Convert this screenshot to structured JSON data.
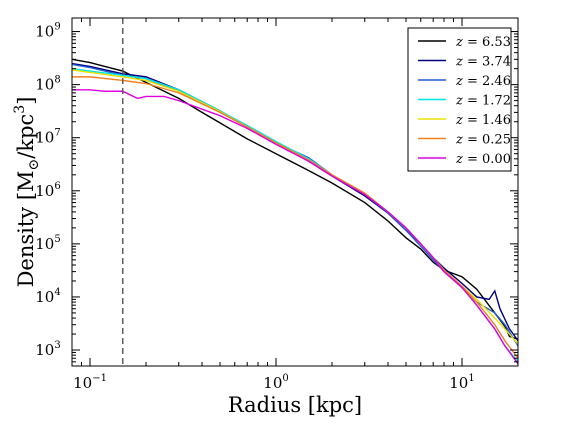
{
  "chart_data": {
    "type": "line",
    "xlabel": "Radius [kpc]",
    "ylabel_main": "Density [M",
    "ylabel_sub": "⊙",
    "ylabel_tail": "/kpc",
    "ylabel_sup": "3",
    "ylabel_end": "]",
    "x_scale": "log",
    "y_scale": "log",
    "xlim": [
      0.08,
      20
    ],
    "ylim": [
      500,
      1800000000
    ],
    "x_ticks": [
      {
        "value": 0.1,
        "base": "10",
        "exp": "−1"
      },
      {
        "value": 1,
        "base": "10",
        "exp": "0"
      },
      {
        "value": 10,
        "base": "10",
        "exp": "1"
      }
    ],
    "y_ticks": [
      {
        "value": 1000,
        "base": "10",
        "exp": "3"
      },
      {
        "value": 10000,
        "base": "10",
        "exp": "4"
      },
      {
        "value": 100000,
        "base": "10",
        "exp": "5"
      },
      {
        "value": 1000000,
        "base": "10",
        "exp": "6"
      },
      {
        "value": 10000000,
        "base": "10",
        "exp": "7"
      },
      {
        "value": 100000000,
        "base": "10",
        "exp": "8"
      },
      {
        "value": 1000000000,
        "base": "10",
        "exp": "9"
      }
    ],
    "vline": {
      "x": 0.15,
      "style": "dashed",
      "color": "#555555"
    },
    "legend_position": "top-right",
    "legend_var": "z",
    "grid": false,
    "series": [
      {
        "name": "6.53",
        "color": "#000000",
        "points": [
          [
            0.08,
            300000000.0
          ],
          [
            0.1,
            260000000.0
          ],
          [
            0.12,
            220000000.0
          ],
          [
            0.15,
            180000000.0
          ],
          [
            0.2,
            110000000.0
          ],
          [
            0.3,
            55000000.0
          ],
          [
            0.4,
            30000000.0
          ],
          [
            0.5,
            19000000.0
          ],
          [
            0.7,
            9500000.0
          ],
          [
            1.0,
            5000000.0
          ],
          [
            1.5,
            2400000.0
          ],
          [
            2.0,
            1400000.0
          ],
          [
            3.0,
            600000.0
          ],
          [
            4.0,
            270000.0
          ],
          [
            5.0,
            130000.0
          ],
          [
            6.0,
            80000.0
          ],
          [
            7.0,
            45000.0
          ],
          [
            8.0,
            32000.0
          ],
          [
            10.0,
            24000.0
          ],
          [
            12.0,
            14000.0
          ],
          [
            15.0,
            5000.0
          ],
          [
            17.0,
            2800.0
          ],
          [
            18.0,
            1800.0
          ],
          [
            20.0,
            1600.0
          ]
        ]
      },
      {
        "name": "3.74",
        "color": "#000080",
        "points": [
          [
            0.08,
            250000000.0
          ],
          [
            0.1,
            220000000.0
          ],
          [
            0.15,
            160000000.0
          ],
          [
            0.2,
            140000000.0
          ],
          [
            0.3,
            80000000.0
          ],
          [
            0.5,
            32000000.0
          ],
          [
            0.7,
            16000000.0
          ],
          [
            1.0,
            8000000.0
          ],
          [
            1.5,
            3600000.0
          ],
          [
            2.0,
            1900000.0
          ],
          [
            3.0,
            800000.0
          ],
          [
            4.0,
            380000.0
          ],
          [
            5.0,
            180000.0
          ],
          [
            6.0,
            100000.0
          ],
          [
            7.0,
            55000.0
          ],
          [
            8.0,
            35000.0
          ],
          [
            10.0,
            18000.0
          ],
          [
            12.0,
            10000.0
          ],
          [
            14.0,
            9000.0
          ],
          [
            15.0,
            13000.0
          ],
          [
            16.0,
            6000.0
          ],
          [
            18.0,
            2500.0
          ],
          [
            20.0,
            1500.0
          ]
        ]
      },
      {
        "name": "2.46",
        "color": "#1f5fd6",
        "points": [
          [
            0.08,
            240000000.0
          ],
          [
            0.1,
            210000000.0
          ],
          [
            0.15,
            150000000.0
          ],
          [
            0.2,
            130000000.0
          ],
          [
            0.3,
            75000000.0
          ],
          [
            0.5,
            30000000.0
          ],
          [
            0.7,
            16000000.0
          ],
          [
            1.0,
            8000000.0
          ],
          [
            1.5,
            4200000.0
          ],
          [
            2.0,
            2000000.0
          ],
          [
            3.0,
            850000.0
          ],
          [
            4.0,
            390000.0
          ],
          [
            5.0,
            180000.0
          ],
          [
            6.0,
            90000.0
          ],
          [
            7.0,
            50000.0
          ],
          [
            8.0,
            30000.0
          ],
          [
            10.0,
            15000.0
          ],
          [
            12.0,
            8000.0
          ],
          [
            15.0,
            5000.0
          ],
          [
            17.0,
            3000.0
          ],
          [
            20.0,
            1200.0
          ]
        ]
      },
      {
        "name": "1.72",
        "color": "#00e5e5",
        "points": [
          [
            0.08,
            200000000.0
          ],
          [
            0.1,
            180000000.0
          ],
          [
            0.15,
            150000000.0
          ],
          [
            0.2,
            130000000.0
          ],
          [
            0.3,
            80000000.0
          ],
          [
            0.5,
            32000000.0
          ],
          [
            0.7,
            17000000.0
          ],
          [
            1.0,
            8500000.0
          ],
          [
            1.5,
            4000000.0
          ],
          [
            2.0,
            2000000.0
          ],
          [
            3.0,
            900000.0
          ],
          [
            4.0,
            400000.0
          ],
          [
            5.0,
            200000.0
          ],
          [
            6.0,
            100000.0
          ],
          [
            7.0,
            55000.0
          ],
          [
            8.0,
            32000.0
          ],
          [
            10.0,
            16000.0
          ],
          [
            12.0,
            7000.0
          ],
          [
            15.0,
            2500.0
          ],
          [
            17.0,
            1200.0
          ],
          [
            20.0,
            600.0
          ]
        ]
      },
      {
        "name": "1.46",
        "color": "#e8e000",
        "points": [
          [
            0.08,
            190000000.0
          ],
          [
            0.1,
            170000000.0
          ],
          [
            0.15,
            140000000.0
          ],
          [
            0.2,
            120000000.0
          ],
          [
            0.3,
            75000000.0
          ],
          [
            0.5,
            31000000.0
          ],
          [
            0.7,
            16000000.0
          ],
          [
            1.0,
            8000000.0
          ],
          [
            1.5,
            3800000.0
          ],
          [
            2.0,
            2000000.0
          ],
          [
            3.0,
            900000.0
          ],
          [
            4.0,
            400000.0
          ],
          [
            5.0,
            200000.0
          ],
          [
            6.0,
            100000.0
          ],
          [
            7.0,
            55000.0
          ],
          [
            8.0,
            32000.0
          ],
          [
            10.0,
            16000.0
          ],
          [
            12.0,
            9000.0
          ],
          [
            15.0,
            4000.0
          ],
          [
            17.0,
            2500.0
          ],
          [
            20.0,
            1300.0
          ]
        ]
      },
      {
        "name": "0.25",
        "color": "#f08020",
        "points": [
          [
            0.08,
            140000000.0
          ],
          [
            0.1,
            140000000.0
          ],
          [
            0.15,
            120000000.0
          ],
          [
            0.2,
            105000000.0
          ],
          [
            0.3,
            70000000.0
          ],
          [
            0.5,
            30000000.0
          ],
          [
            0.7,
            16000000.0
          ],
          [
            1.0,
            8000000.0
          ],
          [
            1.5,
            3800000.0
          ],
          [
            2.0,
            2000000.0
          ],
          [
            3.0,
            900000.0
          ],
          [
            4.0,
            400000.0
          ],
          [
            5.0,
            200000.0
          ],
          [
            6.0,
            100000.0
          ],
          [
            7.0,
            55000.0
          ],
          [
            8.0,
            32000.0
          ],
          [
            10.0,
            16000.0
          ],
          [
            12.0,
            8000.0
          ],
          [
            15.0,
            3000.0
          ],
          [
            17.0,
            1500.0
          ],
          [
            20.0,
            700.0
          ]
        ]
      },
      {
        "name": "0.00",
        "color": "#e000e0",
        "points": [
          [
            0.08,
            80000000.0
          ],
          [
            0.1,
            80000000.0
          ],
          [
            0.12,
            75000000.0
          ],
          [
            0.15,
            75000000.0
          ],
          [
            0.18,
            55000000.0
          ],
          [
            0.2,
            60000000.0
          ],
          [
            0.25,
            60000000.0
          ],
          [
            0.3,
            50000000.0
          ],
          [
            0.5,
            26000000.0
          ],
          [
            0.7,
            15000000.0
          ],
          [
            1.0,
            7500000.0
          ],
          [
            1.5,
            3600000.0
          ],
          [
            2.0,
            1900000.0
          ],
          [
            3.0,
            850000.0
          ],
          [
            4.0,
            400000.0
          ],
          [
            5.0,
            200000.0
          ],
          [
            6.0,
            100000.0
          ],
          [
            7.0,
            55000.0
          ],
          [
            8.0,
            30000.0
          ],
          [
            10.0,
            15000.0
          ],
          [
            12.0,
            7000.0
          ],
          [
            15.0,
            2500.0
          ],
          [
            17.0,
            1200.0
          ],
          [
            20.0,
            550.0
          ]
        ]
      }
    ]
  }
}
